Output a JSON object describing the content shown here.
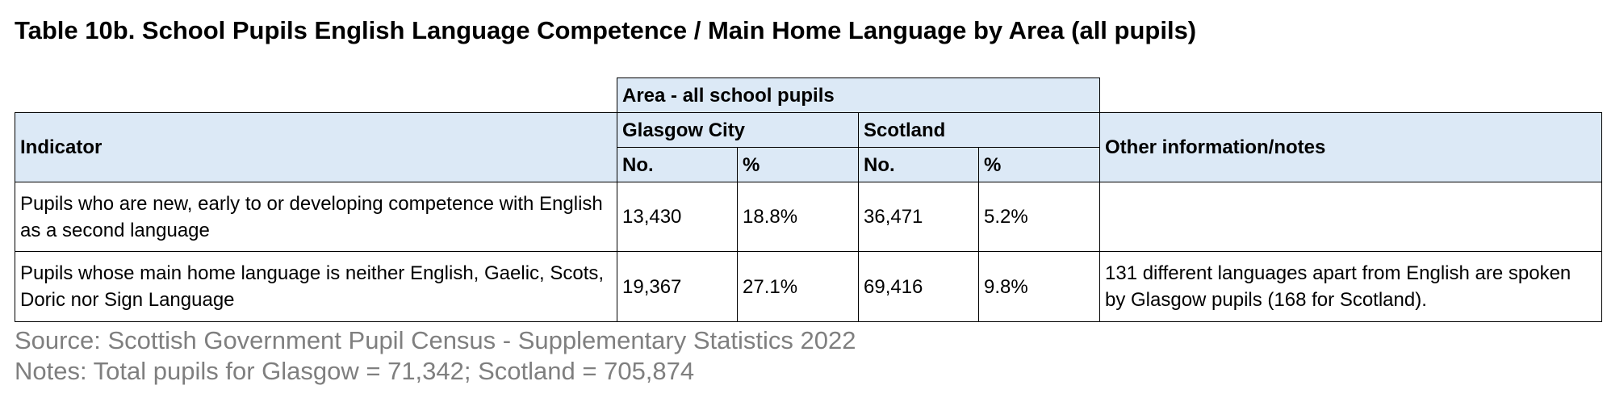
{
  "title": "Table 10b.  School Pupils English Language Competence / Main Home Language by Area (all pupils)",
  "table": {
    "group_header": "Area - all school pupils",
    "indicator_header": "Indicator",
    "area_1": "Glasgow City",
    "area_2": "Scotland",
    "notes_header": "Other information/notes",
    "col_no": "No.",
    "col_pct": "%",
    "rows": [
      {
        "indicator": "Pupils who are new, early to or developing competence with English as a second language",
        "glasgow_no": "13,430",
        "glasgow_pct": "18.8%",
        "scotland_no": "36,471",
        "scotland_pct": "5.2%",
        "notes": ""
      },
      {
        "indicator": "Pupils whose main home language is neither English, Gaelic, Scots, Doric nor Sign Language",
        "glasgow_no": "19,367",
        "glasgow_pct": "27.1%",
        "scotland_no": "69,416",
        "scotland_pct": "9.8%",
        "notes": "131 different languages apart from English are spoken by Glasgow pupils (168 for Scotland)."
      }
    ]
  },
  "footer": {
    "source": "Source: Scottish Government Pupil Census - Supplementary Statistics 2022",
    "notes": "Notes: Total pupils for Glasgow = 71,342; Scotland = 705,874"
  }
}
